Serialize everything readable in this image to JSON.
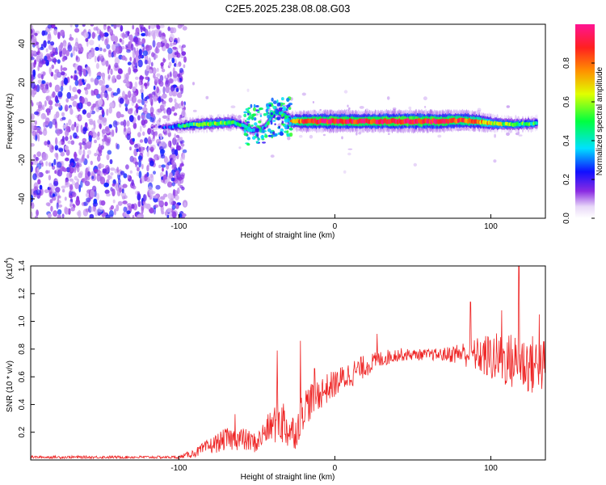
{
  "figure_title": "C2E5.2025.238.08.08.G03",
  "colors": {
    "snr_line": "#ee2222",
    "spectrogram_low": "#8a2be2",
    "frame": "#000000"
  },
  "chart_data": [
    {
      "type": "heatmap",
      "name": "spectrogram",
      "title": "C2E5.2025.238.08.08.G03",
      "xlabel": "Height of straight line (km)",
      "ylabel": "Frequency (Hz)",
      "xlim": [
        -195,
        135
      ],
      "ylim": [
        -50,
        50
      ],
      "xticks": [
        -100,
        0,
        100
      ],
      "yticks": [
        -40,
        -20,
        0,
        20,
        40
      ],
      "xtick_labels": [
        "-100",
        "0",
        "100"
      ],
      "ytick_labels": [
        "-40",
        "-20",
        "0",
        "20",
        "40"
      ],
      "noise_region_x": [
        -195,
        -100
      ],
      "carrier": [
        {
          "x": -118,
          "f": -3,
          "amp": 0.05
        },
        {
          "x": -112,
          "f": -3,
          "amp": 0.15
        },
        {
          "x": -105,
          "f": -3,
          "amp": 0.3
        },
        {
          "x": -95,
          "f": -2,
          "amp": 0.45
        },
        {
          "x": -85,
          "f": -1.5,
          "amp": 0.55
        },
        {
          "x": -75,
          "f": -1,
          "amp": 0.55
        },
        {
          "x": -65,
          "f": -0.5,
          "amp": 0.5
        },
        {
          "x": -57,
          "f": -3,
          "amp": 0.4
        },
        {
          "x": -52,
          "f": -5,
          "amp": 0.3
        },
        {
          "x": -45,
          "f": -3,
          "amp": 0.3
        },
        {
          "x": -38,
          "f": 5,
          "amp": 0.35
        },
        {
          "x": -32,
          "f": 3,
          "amp": 0.4
        },
        {
          "x": -28,
          "f": 0,
          "amp": 0.7
        },
        {
          "x": -20,
          "f": 0,
          "amp": 0.85
        },
        {
          "x": -10,
          "f": 0,
          "amp": 0.9
        },
        {
          "x": 0,
          "f": 0,
          "amp": 0.92
        },
        {
          "x": 10,
          "f": 0,
          "amp": 0.9
        },
        {
          "x": 20,
          "f": 0,
          "amp": 0.88
        },
        {
          "x": 30,
          "f": 0,
          "amp": 0.92
        },
        {
          "x": 40,
          "f": 0,
          "amp": 0.95
        },
        {
          "x": 50,
          "f": 0,
          "amp": 0.95
        },
        {
          "x": 60,
          "f": 0,
          "amp": 0.93
        },
        {
          "x": 70,
          "f": 0,
          "amp": 0.9
        },
        {
          "x": 80,
          "f": 0.5,
          "amp": 0.85
        },
        {
          "x": 90,
          "f": 0,
          "amp": 0.8
        },
        {
          "x": 100,
          "f": -1,
          "amp": 0.65
        },
        {
          "x": 110,
          "f": -1.5,
          "amp": 0.55
        },
        {
          "x": 120,
          "f": -1.5,
          "amp": 0.5
        },
        {
          "x": 130,
          "f": -1,
          "amp": 0.5
        }
      ],
      "colorbar": {
        "label": "Normalized spectral amplitude",
        "range": [
          0,
          1
        ],
        "ticks": [
          0.0,
          0.2,
          0.4,
          0.6,
          0.8
        ],
        "tick_labels": [
          "0.0",
          "0.2",
          "0.4",
          "0.6",
          "0.8"
        ]
      }
    },
    {
      "type": "line",
      "name": "snr",
      "xlabel": "Height of straight line (km)",
      "ylabel": "SNR (10 * v/v)",
      "y_multiplier_label": "(x10",
      "y_multiplier_exponent": "4",
      "y_multiplier_close": ")",
      "xlim": [
        -195,
        135
      ],
      "ylim": [
        0,
        1.4
      ],
      "xticks": [
        -100,
        0,
        100
      ],
      "yticks": [
        0.2,
        0.4,
        0.6,
        0.8,
        1.0,
        1.2,
        1.4
      ],
      "xtick_labels": [
        "-100",
        "0",
        "100"
      ],
      "ytick_labels": [
        "0.2",
        "0.4",
        "0.6",
        "0.8",
        "1.0",
        "1.2",
        "1.4"
      ],
      "envelope": [
        {
          "x": -195,
          "y": 0.02,
          "spread": 0.01
        },
        {
          "x": -100,
          "y": 0.02,
          "spread": 0.01
        },
        {
          "x": -90,
          "y": 0.05,
          "spread": 0.03
        },
        {
          "x": -80,
          "y": 0.1,
          "spread": 0.06
        },
        {
          "x": -70,
          "y": 0.15,
          "spread": 0.08
        },
        {
          "x": -60,
          "y": 0.15,
          "spread": 0.09
        },
        {
          "x": -50,
          "y": 0.12,
          "spread": 0.07
        },
        {
          "x": -45,
          "y": 0.2,
          "spread": 0.1
        },
        {
          "x": -40,
          "y": 0.25,
          "spread": 0.12
        },
        {
          "x": -35,
          "y": 0.3,
          "spread": 0.2
        },
        {
          "x": -30,
          "y": 0.22,
          "spread": 0.15
        },
        {
          "x": -25,
          "y": 0.2,
          "spread": 0.12
        },
        {
          "x": -20,
          "y": 0.38,
          "spread": 0.15
        },
        {
          "x": -10,
          "y": 0.48,
          "spread": 0.12
        },
        {
          "x": 0,
          "y": 0.55,
          "spread": 0.1
        },
        {
          "x": 10,
          "y": 0.62,
          "spread": 0.1
        },
        {
          "x": 20,
          "y": 0.68,
          "spread": 0.08
        },
        {
          "x": 30,
          "y": 0.73,
          "spread": 0.06
        },
        {
          "x": 40,
          "y": 0.76,
          "spread": 0.05
        },
        {
          "x": 50,
          "y": 0.76,
          "spread": 0.04
        },
        {
          "x": 60,
          "y": 0.76,
          "spread": 0.04
        },
        {
          "x": 70,
          "y": 0.76,
          "spread": 0.05
        },
        {
          "x": 80,
          "y": 0.77,
          "spread": 0.08
        },
        {
          "x": 90,
          "y": 0.76,
          "spread": 0.12
        },
        {
          "x": 100,
          "y": 0.74,
          "spread": 0.18
        },
        {
          "x": 110,
          "y": 0.72,
          "spread": 0.2
        },
        {
          "x": 120,
          "y": 0.7,
          "spread": 0.22
        },
        {
          "x": 130,
          "y": 0.68,
          "spread": 0.22
        },
        {
          "x": 135,
          "y": 0.68,
          "spread": 0.2
        }
      ],
      "spikes": [
        {
          "x": -64,
          "y": 0.33
        },
        {
          "x": -37,
          "y": 0.79
        },
        {
          "x": -22,
          "y": 0.86
        },
        {
          "x": -13,
          "y": 0.66
        },
        {
          "x": 27,
          "y": 0.91
        },
        {
          "x": 87,
          "y": 1.14
        },
        {
          "x": 107,
          "y": 1.08
        },
        {
          "x": 118,
          "y": 1.42
        },
        {
          "x": 131,
          "y": 1.05
        }
      ]
    }
  ]
}
